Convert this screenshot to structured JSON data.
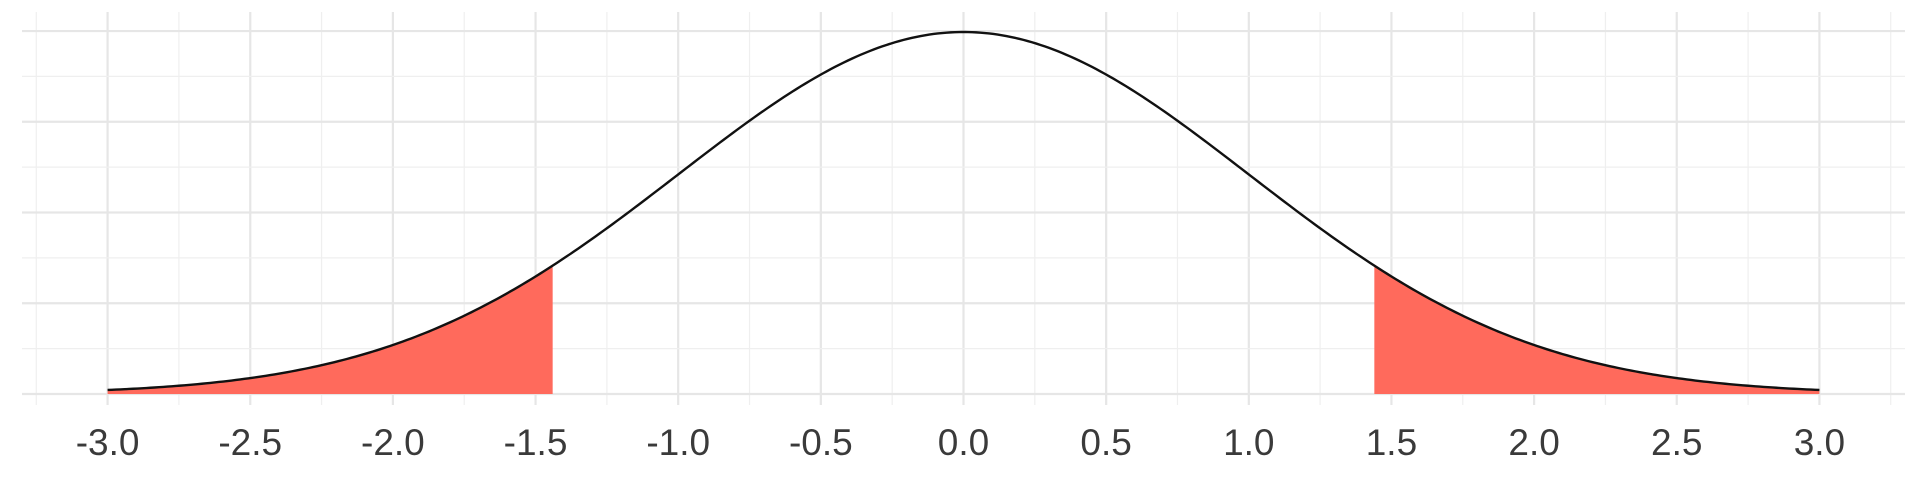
{
  "chart_data": {
    "type": "area",
    "title": "",
    "xlabel": "",
    "ylabel": "",
    "distribution": "standard normal density",
    "xlim": [
      -3.3,
      3.3
    ],
    "ylim": [
      0,
      0.42
    ],
    "x_ticks": [
      -3.0,
      -2.5,
      -2.0,
      -1.5,
      -1.0,
      -0.5,
      0.0,
      0.5,
      1.0,
      1.5,
      2.0,
      2.5,
      3.0
    ],
    "x_tick_labels": [
      "-3.0",
      "-2.5",
      "-2.0",
      "-1.5",
      "-1.0",
      "-0.5",
      "0.0",
      "0.5",
      "1.0",
      "1.5",
      "2.0",
      "2.5",
      "3.0"
    ],
    "y_ticks": [
      0.0,
      0.1,
      0.2,
      0.3,
      0.4
    ],
    "y_tick_labels_shown": false,
    "curve_x_range": [
      -3.0,
      3.0
    ],
    "shaded_regions": [
      {
        "from": -3.0,
        "to": -1.44
      },
      {
        "from": 1.44,
        "to": 3.0
      }
    ],
    "grid": true,
    "colors": {
      "curve": "#111111",
      "shade": "#ff6a5c",
      "grid_major": "#e6e6e6",
      "grid_minor": "#efefef",
      "tick_text": "#3a3a3a"
    }
  }
}
